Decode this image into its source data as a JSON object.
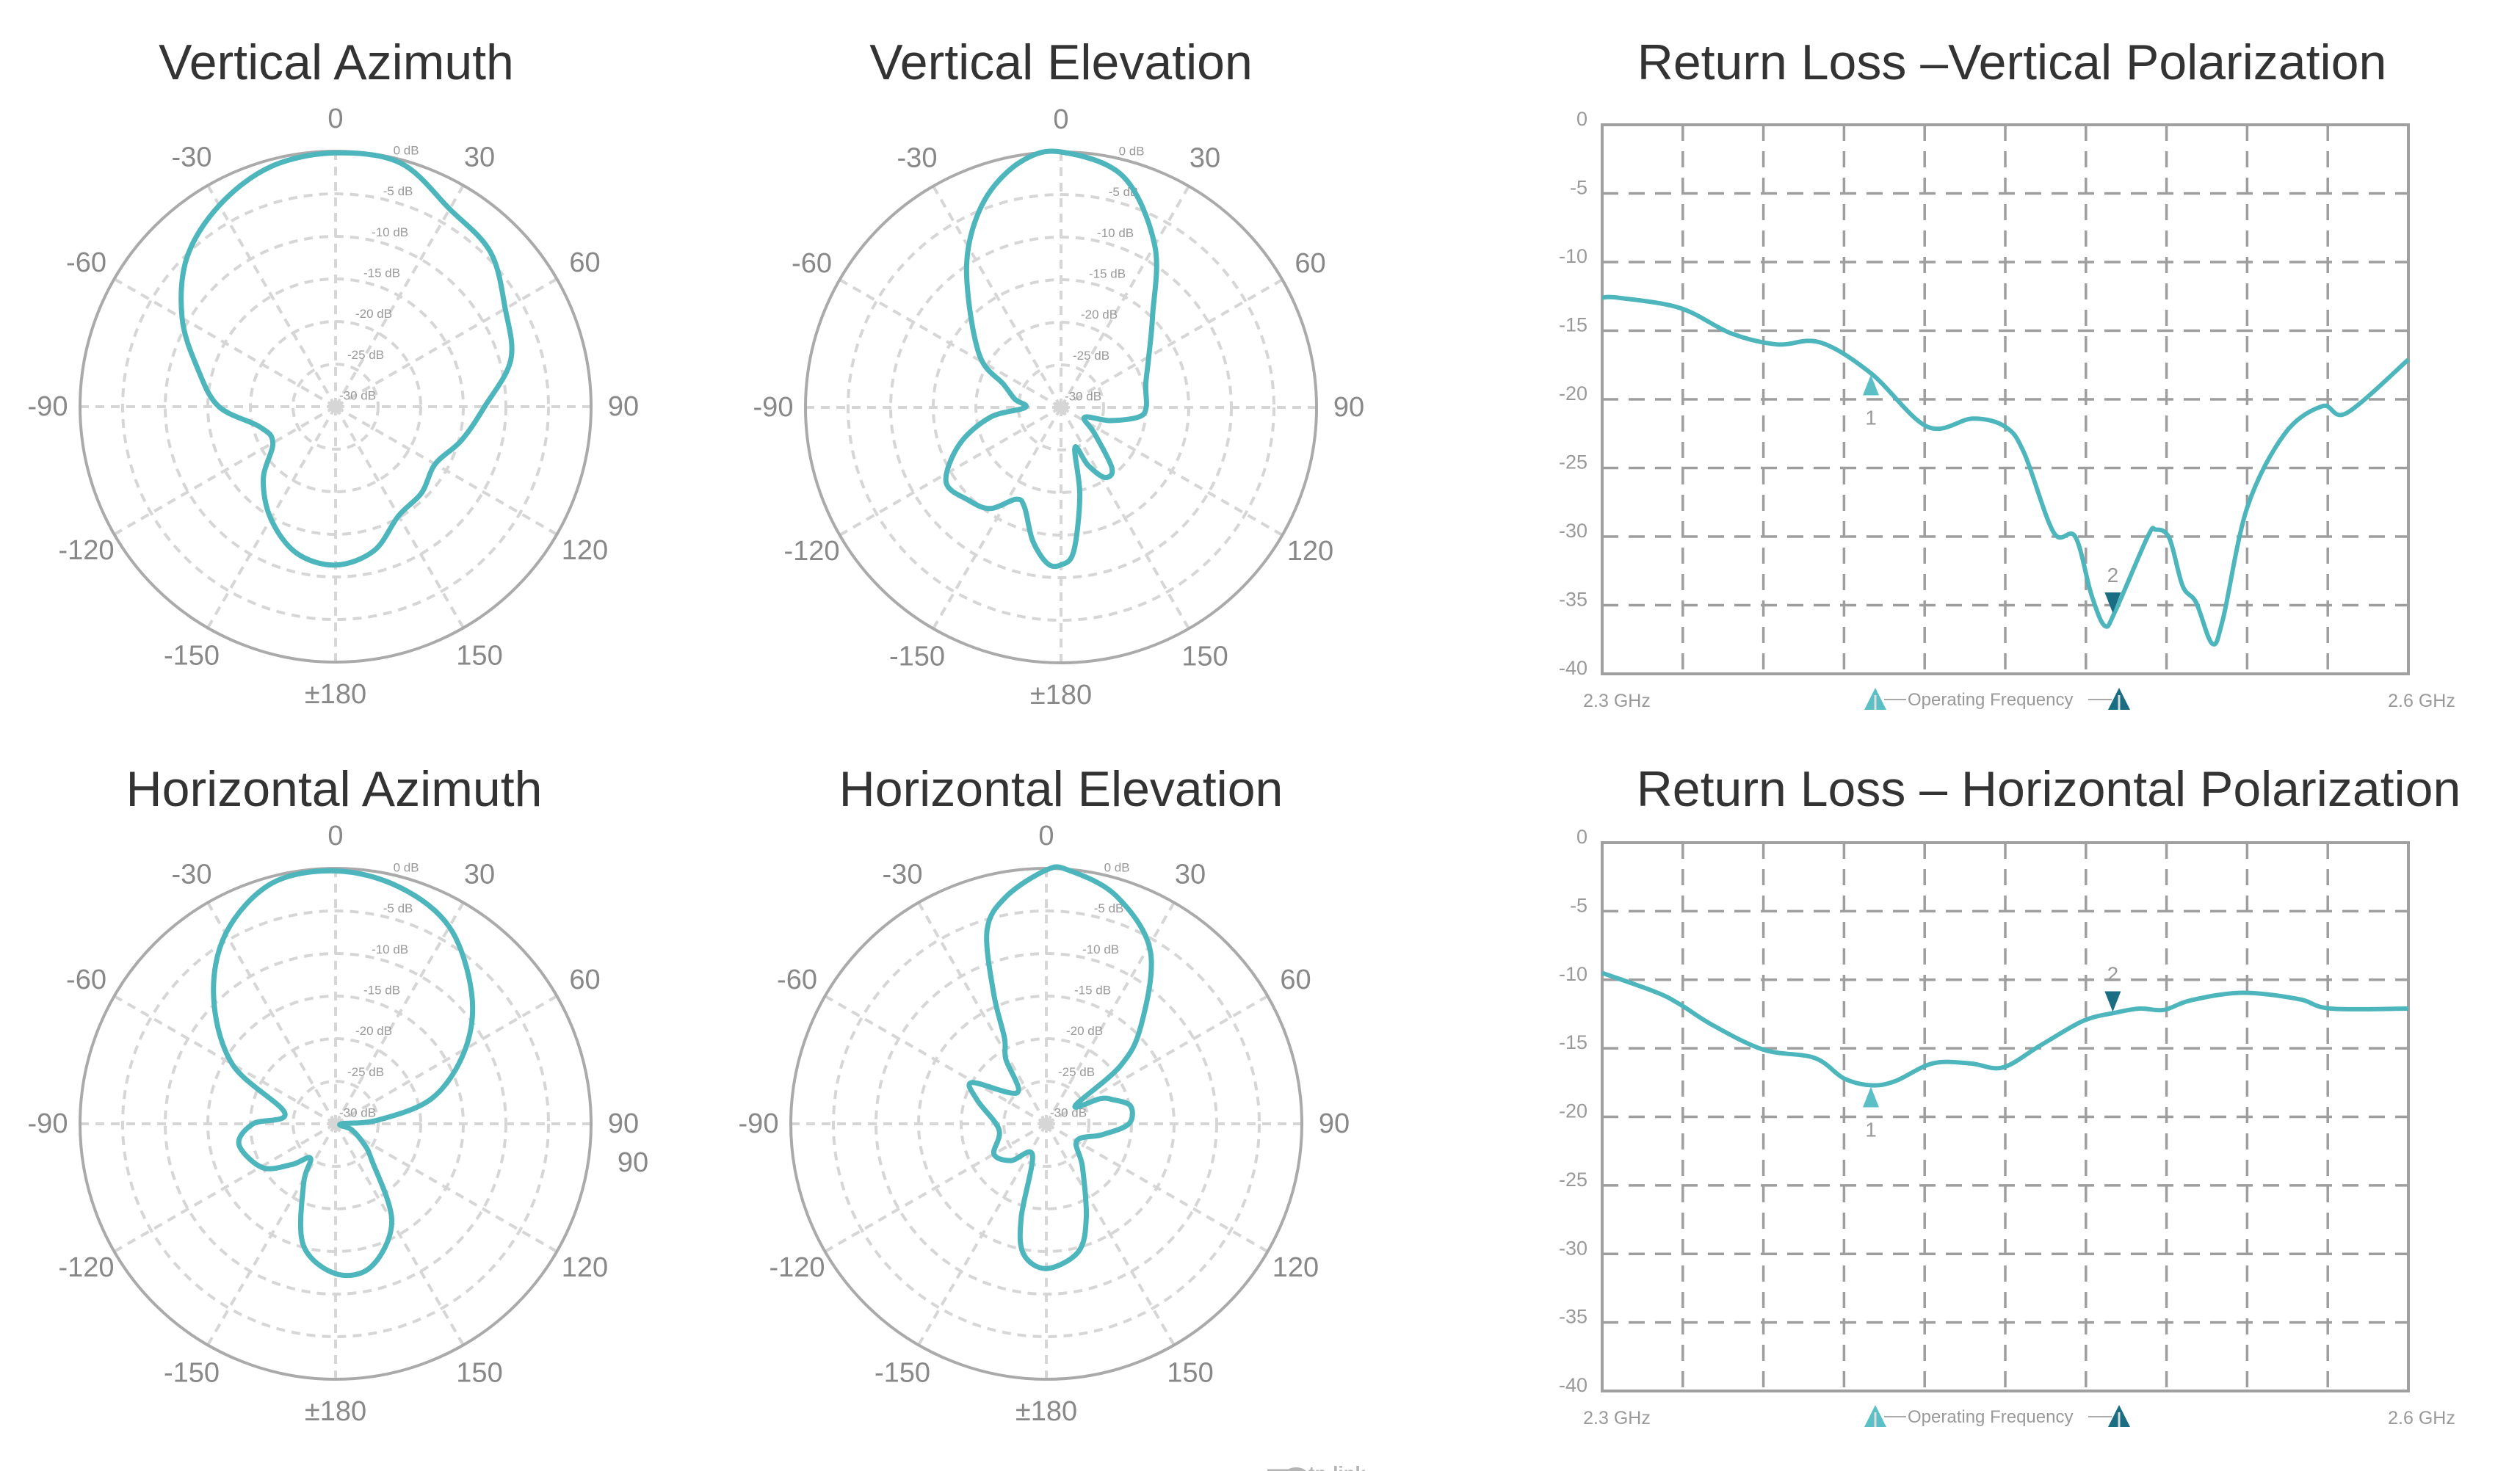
{
  "colors": {
    "curve": "#4db6bc",
    "marker_light": "#5bc0c6",
    "marker_dark": "#1a6e84",
    "polar_grid": "#d6d6d6",
    "polar_outer": "#aaaaaa",
    "plot_grid": "#9e9e9e",
    "title_text": "#333333",
    "label_text": "#888888"
  },
  "logo": {
    "text": "tp-link"
  },
  "chart_data": [
    {
      "type": "polar",
      "title": "Vertical Azimuth",
      "angle_labels": [
        "0",
        "30",
        "60",
        "90",
        "120",
        "150",
        "±180",
        "-150",
        "-120",
        "-90",
        "-60",
        "-30"
      ],
      "radial_labels": [
        "0 dB",
        "-5 dB",
        "-10 dB",
        "-15 dB",
        "-20 dB",
        "-25 dB",
        "-30 dB"
      ],
      "rlim": [
        -30,
        0
      ],
      "angles": [
        0,
        15,
        30,
        45,
        60,
        75,
        90,
        105,
        120,
        135,
        150,
        165,
        180,
        195,
        210,
        225,
        240,
        255,
        270,
        285,
        300,
        315,
        330,
        345
      ],
      "gain_db": [
        -0.2,
        -0.4,
        -3.2,
        -4.3,
        -7.0,
        -8.7,
        -12.5,
        -14.7,
        -16.5,
        -15.7,
        -15.2,
        -12.5,
        -11.4,
        -12.2,
        -14.8,
        -18,
        -21.5,
        -20.8,
        -16.3,
        -13.3,
        -9.2,
        -5.3,
        -2.7,
        -0.8
      ]
    },
    {
      "type": "polar",
      "title": "Vertical Elevation",
      "angle_labels": [
        "0",
        "30",
        "60",
        "90",
        "120",
        "150",
        "±180",
        "-150",
        "-120",
        "-90",
        "-60",
        "-30"
      ],
      "radial_labels": [
        "0 dB",
        "-5 dB",
        "-10 dB",
        "-15 dB",
        "-20 dB",
        "-25 dB",
        "-30 dB"
      ],
      "rlim": [
        -30,
        0
      ],
      "angles": [
        0,
        15,
        30,
        45,
        60,
        75,
        90,
        97,
        105,
        113,
        128,
        140,
        148,
        155,
        161,
        168,
        175,
        180,
        185,
        192,
        200,
        206,
        215,
        225,
        237,
        250,
        262,
        270,
        280,
        292,
        302,
        321,
        331,
        341,
        351
      ],
      "gain_db": [
        0,
        -1.9,
        -8,
        -14.8,
        -18.1,
        -19.7,
        -20,
        -20.8,
        -24,
        -27,
        -25,
        -20.7,
        -20.3,
        -22.5,
        -25,
        -19.4,
        -13,
        -11.5,
        -11.6,
        -14,
        -17.5,
        -18,
        -15.5,
        -14.6,
        -13.9,
        -17.3,
        -21.6,
        -25.8,
        -24.5,
        -22.7,
        -18.8,
        -12.6,
        -7.8,
        -3.6,
        -0.7
      ]
    },
    {
      "type": "polar",
      "title": "Horizontal Azimuth",
      "angle_labels": [
        "0",
        "30",
        "60",
        "90",
        "120",
        "150",
        "±180",
        "-150",
        "-120",
        "-90",
        "-60",
        "-30"
      ],
      "extra_label": "90",
      "radial_labels": [
        "0 dB",
        "-5 dB",
        "-10 dB",
        "-15 dB",
        "-20 dB",
        "-25 dB",
        "-30 dB"
      ],
      "rlim": [
        -30,
        0
      ],
      "angles": [
        0,
        15,
        30,
        46,
        60,
        75,
        85,
        92,
        110,
        125,
        135,
        150,
        166,
        180,
        195,
        208,
        216,
        227,
        239,
        258,
        270,
        282,
        300,
        316,
        330,
        345
      ],
      "gain_db": [
        -0.3,
        -1.2,
        -3.3,
        -7.8,
        -12.4,
        -18.2,
        -25,
        -29.4,
        -28,
        -26,
        -24,
        -16.8,
        -12.7,
        -12.4,
        -15.3,
        -22,
        -25,
        -23,
        -20,
        -18.4,
        -20.3,
        -23.9,
        -16,
        -9.4,
        -4.2,
        -0.8
      ]
    },
    {
      "type": "polar",
      "title": "Horizontal Elevation",
      "angle_labels": [
        "0",
        "30",
        "60",
        "90",
        "120",
        "150",
        "±180",
        "-150",
        "-120",
        "-90",
        "-60",
        "-30"
      ],
      "radial_labels": [
        "0 dB",
        "-5 dB",
        "-10 dB",
        "-15 dB",
        "-20 dB",
        "-25 dB",
        "-30 dB"
      ],
      "rlim": [
        -30,
        0
      ],
      "angles": [
        0,
        5,
        17,
        31,
        44,
        52,
        58,
        65,
        70,
        78,
        90,
        101,
        119,
        140,
        157,
        166,
        180,
        190,
        195,
        204,
        224,
        240,
        263,
        289,
        299,
        317,
        328,
        334,
        338,
        343,
        350
      ],
      "gain_db": [
        -0.2,
        -0.1,
        -2,
        -6.3,
        -14,
        -19,
        -26,
        -23,
        -21.7,
        -19.9,
        -20.3,
        -23.3,
        -25.9,
        -23.4,
        -18,
        -14.5,
        -13,
        -14.5,
        -18.6,
        -26,
        -24,
        -22.9,
        -24.4,
        -21.4,
        -20,
        -25,
        -21,
        -18.8,
        -13.5,
        -6.2,
        -2.9
      ]
    },
    {
      "type": "line",
      "title": "Return Loss –Vertical Polarization",
      "xlim": [
        2.3,
        2.6
      ],
      "ylim": [
        -40,
        0
      ],
      "grid": true,
      "ytick_labels": [
        "0",
        "-5",
        "-10",
        "-15",
        "-20",
        "-25",
        "-30",
        "-35",
        "-40"
      ],
      "x_labels": [
        "2.3 GHz",
        "2.6 GHz"
      ],
      "x": [
        2.3,
        2.306,
        2.329,
        2.348,
        2.365,
        2.381,
        2.4,
        2.421,
        2.438,
        2.45,
        2.457,
        2.468,
        2.476,
        2.482,
        2.487,
        2.491,
        2.503,
        2.506,
        2.511,
        2.516,
        2.521,
        2.527,
        2.531,
        2.54,
        2.554,
        2.568,
        2.577,
        2.6
      ],
      "y": [
        -12.6,
        -12.6,
        -13.35,
        -15.2,
        -16.0,
        -15.85,
        -18.1,
        -22.0,
        -21.4,
        -22.0,
        -23.9,
        -29.7,
        -30.0,
        -34.2,
        -36.5,
        -35.4,
        -30.0,
        -29.5,
        -30.1,
        -33.6,
        -34.8,
        -37.8,
        -36.0,
        -27.9,
        -22.5,
        -20.5,
        -21.0,
        -17.1
      ],
      "markers": [
        {
          "label": "1",
          "x": 2.4,
          "direction": "up",
          "color": "#5bc0c6"
        },
        {
          "label": "2",
          "x": 2.49,
          "direction": "down",
          "color": "#1a6e84"
        }
      ],
      "legend": "Operating Frequency",
      "legend_position": "bottom-center"
    },
    {
      "type": "line",
      "title": "Return Loss – Horizontal Polarization",
      "xlim": [
        2.3,
        2.6
      ],
      "ylim": [
        -40,
        0
      ],
      "grid": true,
      "ytick_labels": [
        "0",
        "-5",
        "-10",
        "-15",
        "-20",
        "-25",
        "-30",
        "-35",
        "-40"
      ],
      "x_labels": [
        "2.3 GHz",
        "2.6 GHz"
      ],
      "x": [
        2.3,
        2.32,
        2.329,
        2.341,
        2.36,
        2.379,
        2.39,
        2.4,
        2.409,
        2.423,
        2.437,
        2.449,
        2.463,
        2.479,
        2.491,
        2.5,
        2.509,
        2.519,
        2.538,
        2.559,
        2.571,
        2.6
      ],
      "y": [
        -9.5,
        -10.9,
        -11.8,
        -13.3,
        -15.1,
        -15.7,
        -17.2,
        -17.7,
        -17.4,
        -16.1,
        -16.1,
        -16.4,
        -14.8,
        -13.0,
        -12.4,
        -12.1,
        -12.2,
        -11.5,
        -10.95,
        -11.4,
        -12.1,
        -12.1
      ],
      "markers": [
        {
          "label": "1",
          "x": 2.4,
          "direction": "up",
          "color": "#5bc0c6"
        },
        {
          "label": "2",
          "x": 2.49,
          "direction": "down",
          "color": "#1a6e84"
        }
      ],
      "legend": "Operating Frequency",
      "legend_position": "bottom-center"
    }
  ]
}
